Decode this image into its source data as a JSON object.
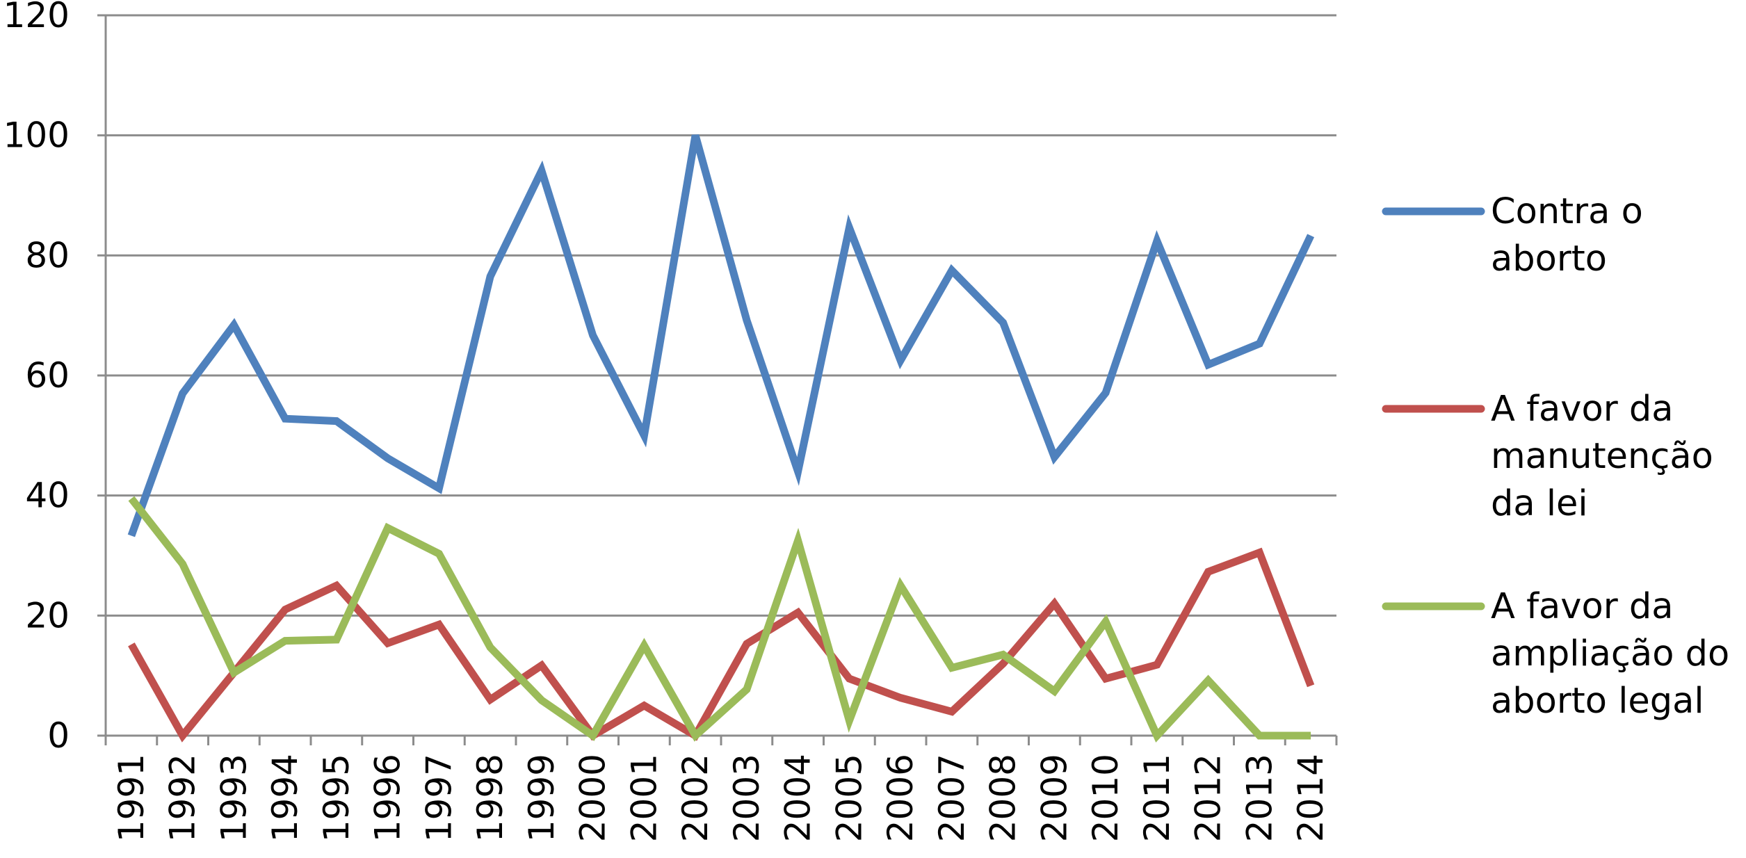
{
  "chart_data": {
    "type": "line",
    "title": "",
    "xlabel": "",
    "ylabel": "",
    "ylim": [
      0,
      120
    ],
    "yticks": [
      "0",
      "20",
      "40",
      "60",
      "80",
      "100",
      "120"
    ],
    "grid": true,
    "legend_position": "right",
    "categories": [
      "1991",
      "1992",
      "1993",
      "1994",
      "1995",
      "1996",
      "1997",
      "1998",
      "1999",
      "2000",
      "2001",
      "2002",
      "2003",
      "2004",
      "2005",
      "2006",
      "2007",
      "2008",
      "2009",
      "2010",
      "2011",
      "2012",
      "2013",
      "2014"
    ],
    "series": [
      {
        "name": "Contra o aborto",
        "legend_lines": [
          "Contra o",
          "aborto"
        ],
        "color": "#4F81BD",
        "values": [
          33.3,
          57,
          68.4,
          52.8,
          52.4,
          46.2,
          41.2,
          76.5,
          94.1,
          66.7,
          50,
          100,
          69.2,
          44,
          84.6,
          62.5,
          77.5,
          68.8,
          46.4,
          57.1,
          82.4,
          61.8,
          65.3,
          83.3
        ]
      },
      {
        "name": "A favor da manutenção da lei",
        "legend_lines": [
          "A favor da",
          "manutenção",
          "da lei"
        ],
        "color": "#C0504D",
        "values": [
          15.2,
          0,
          10.5,
          21,
          25,
          15.4,
          18.5,
          6,
          11.7,
          0,
          5,
          0,
          15.3,
          20.5,
          9.5,
          6.3,
          4,
          12,
          22,
          9.5,
          11.8,
          27.3,
          30.5,
          8.3
        ]
      },
      {
        "name": "A favor da ampliação do aborto legal",
        "legend_lines": [
          "A favor da",
          "ampliação do",
          "aborto legal"
        ],
        "color": "#9BBB59",
        "values": [
          39.5,
          28.6,
          10.5,
          15.8,
          16,
          34.6,
          30.3,
          14.7,
          5.9,
          0,
          15,
          0,
          7.7,
          32.5,
          2.5,
          25,
          11.3,
          13.5,
          7.4,
          19,
          0,
          9.2,
          0,
          0
        ]
      }
    ]
  }
}
